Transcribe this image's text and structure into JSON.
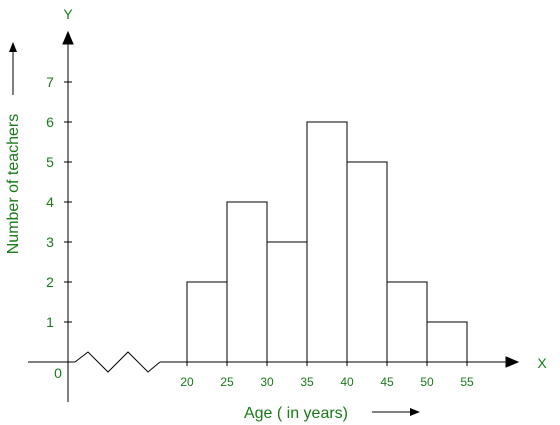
{
  "chart_data": {
    "type": "bar",
    "subtype": "histogram",
    "x_axis_symbol": "X",
    "y_axis_symbol": "Y",
    "origin_label": "0",
    "xlabel": "Age ( in years)",
    "ylabel": "Number of teachers",
    "x_break": true,
    "grid": false,
    "legend": "none",
    "x_ticks": [
      "20",
      "25",
      "30",
      "35",
      "40",
      "45",
      "50",
      "55"
    ],
    "y_ticks": [
      "1",
      "2",
      "3",
      "4",
      "5",
      "6",
      "7"
    ],
    "xlim": [
      20,
      55
    ],
    "ylim": [
      0,
      7
    ],
    "bins": [
      {
        "from": 20,
        "to": 25,
        "value": 2
      },
      {
        "from": 25,
        "to": 30,
        "value": 4
      },
      {
        "from": 30,
        "to": 35,
        "value": 3
      },
      {
        "from": 35,
        "to": 40,
        "value": 6
      },
      {
        "from": 40,
        "to": 45,
        "value": 5
      },
      {
        "from": 45,
        "to": 50,
        "value": 2
      },
      {
        "from": 50,
        "to": 55,
        "value": 1
      }
    ],
    "colors": {
      "label": "#1a7a1a",
      "line": "#000000",
      "bar_fill": "#ffffff"
    }
  }
}
